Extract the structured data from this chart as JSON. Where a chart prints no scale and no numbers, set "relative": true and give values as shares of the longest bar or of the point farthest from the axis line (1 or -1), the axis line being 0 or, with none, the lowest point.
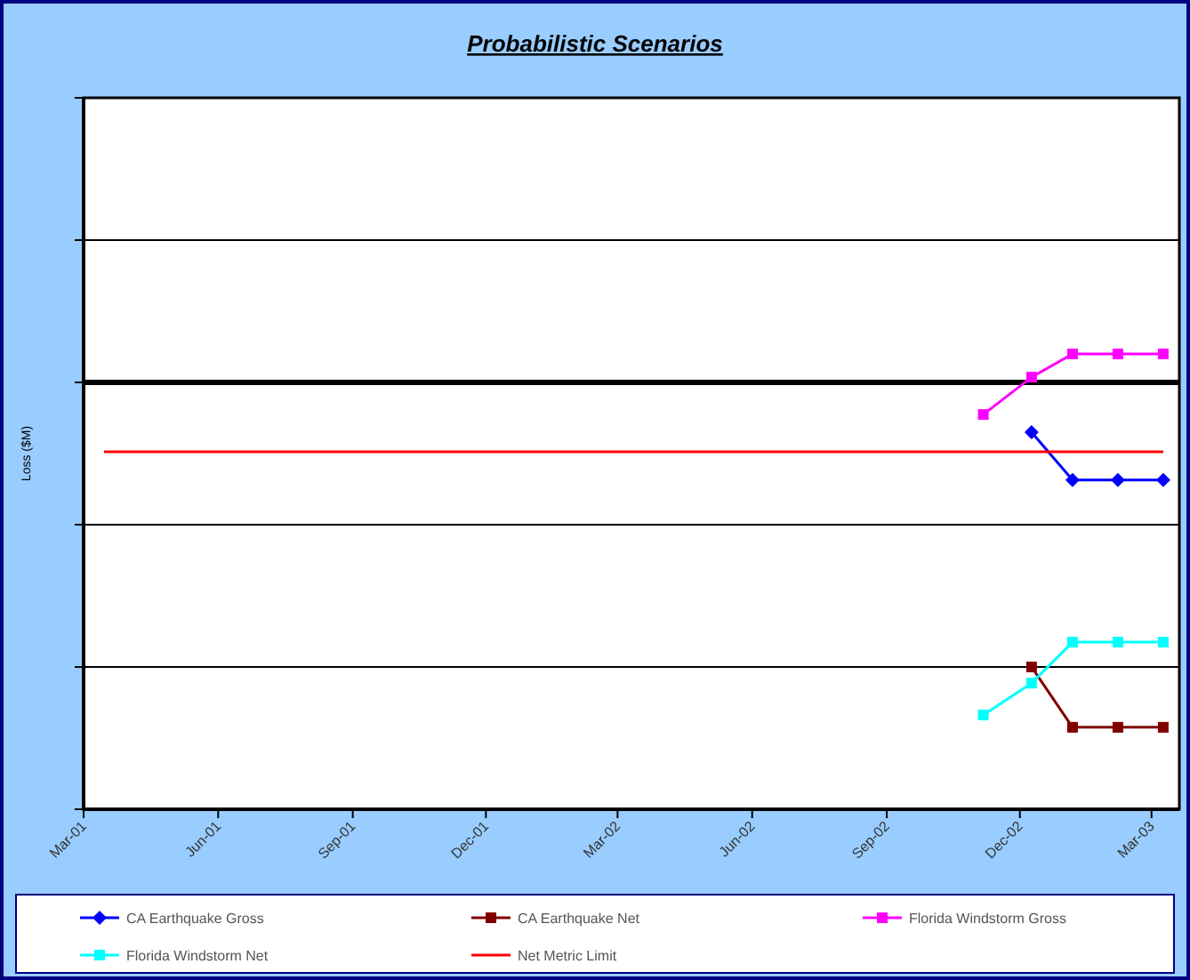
{
  "chart_data": {
    "type": "line",
    "title": "Probabilistic Scenarios",
    "ylabel": "Loss ($M)",
    "legend": "bottom",
    "tick_labels": "x",
    "xlim": [
      "2001-03-01",
      "2003-03-20"
    ],
    "xticks": [
      {
        "value": "2001-03-01",
        "label": "Mar-01"
      },
      {
        "value": "2001-06-01",
        "label": "Jun-01"
      },
      {
        "value": "2001-09-01",
        "label": "Sep-01"
      },
      {
        "value": "2001-12-01",
        "label": "Dec-01"
      },
      {
        "value": "2002-03-01",
        "label": "Mar-02"
      },
      {
        "value": "2002-06-01",
        "label": "Jun-02"
      },
      {
        "value": "2002-09-01",
        "label": "Sep-02"
      },
      {
        "value": "2002-12-01",
        "label": "Dec-02"
      },
      {
        "value": "2003-03-01",
        "label": "Mar-03"
      }
    ],
    "relative": true,
    "ref_lines": [
      {
        "axis": "y",
        "value": 0.3125,
        "color": "#000000"
      },
      {
        "axis": "y",
        "value": 0.625,
        "color": "#000000"
      },
      {
        "axis": "y",
        "value": 0.9375,
        "color": "#000000"
      },
      {
        "axis": "y",
        "value": 1.25,
        "color": "#000000"
      }
    ],
    "series": [
      {
        "name": "CA Earthquake Gross",
        "color": "#0000ff",
        "marker": "diamond",
        "x": [
          "2002-12-09",
          "2003-01-06",
          "2003-02-06",
          "2003-03-09"
        ],
        "values": [
          0.828,
          0.723,
          0.723,
          0.723
        ]
      },
      {
        "name": "CA Earthquake Net",
        "color": "#800000",
        "marker": "square",
        "x": [
          "2002-12-09",
          "2003-01-06",
          "2003-02-06",
          "2003-03-09"
        ],
        "values": [
          0.3125,
          0.18,
          0.18,
          0.18
        ]
      },
      {
        "name": "Florida Windstorm Gross",
        "color": "#ff00ff",
        "marker": "square",
        "x": [
          "2002-11-06",
          "2002-12-09",
          "2003-01-06",
          "2003-02-06",
          "2003-03-09"
        ],
        "values": [
          0.867,
          0.949,
          1,
          1,
          1
        ]
      },
      {
        "name": "Florida Windstorm Net",
        "color": "#00ffff",
        "marker": "square",
        "x": [
          "2002-11-06",
          "2002-12-09",
          "2003-01-06",
          "2003-02-06",
          "2003-03-09"
        ],
        "values": [
          0.207,
          0.277,
          0.367,
          0.367,
          0.367
        ]
      },
      {
        "name": "Net Metric Limit",
        "color": "#ff0000",
        "marker": "none",
        "x": [
          "2001-03-15",
          "2003-03-09"
        ],
        "values": [
          0.785,
          0.785
        ]
      }
    ]
  }
}
